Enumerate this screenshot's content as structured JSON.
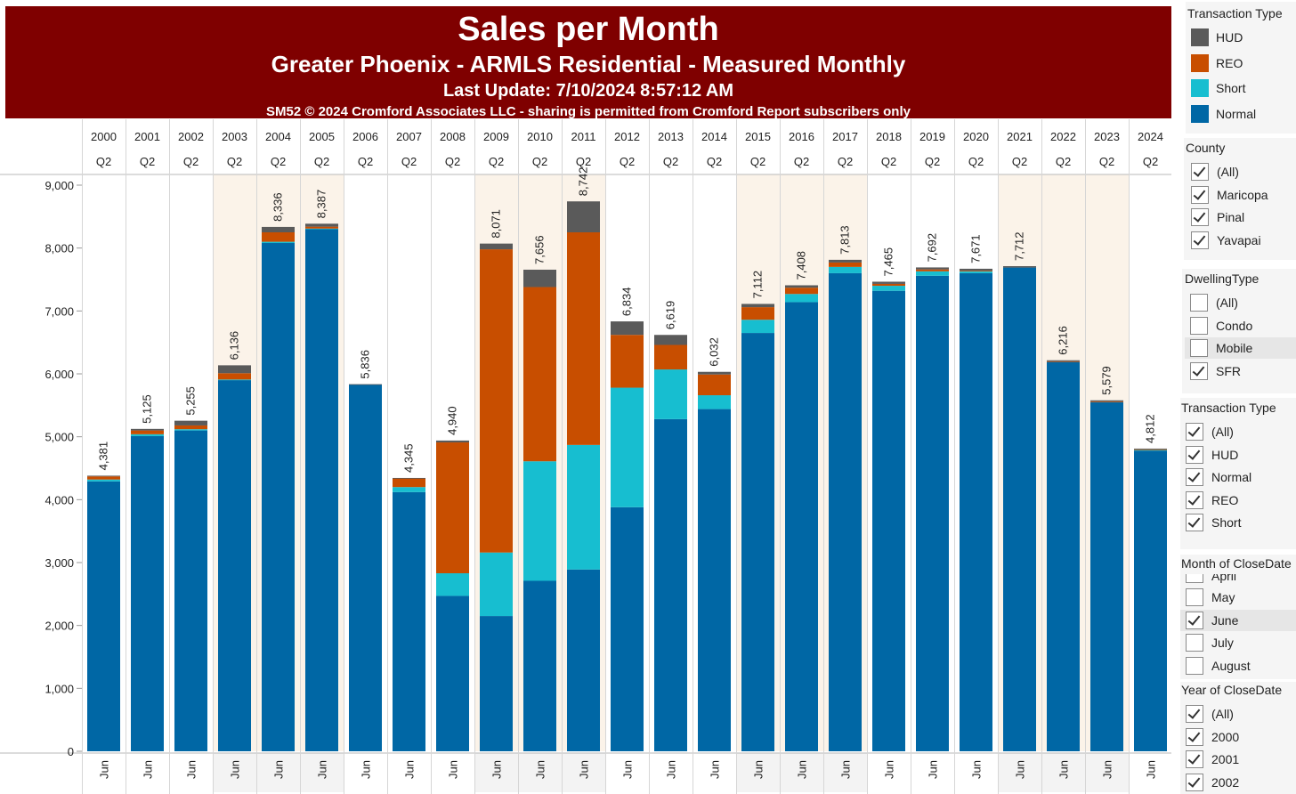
{
  "header": {
    "title": "Sales per Month",
    "subtitle": "Greater Phoenix - ARMLS Residential - Measured Monthly",
    "last_update": "Last Update: 7/10/2024 8:57:12 AM",
    "copyright": "SM52 © 2024 Cromford Associates LLC - sharing is permitted from Cromford Report subscribers only"
  },
  "colors": {
    "banner": "#7f0000",
    "HUD": "#5a5a5a",
    "REO": "#c84e00",
    "Short": "#17bed0",
    "Normal": "#0067a5",
    "band": "#fbf3e9"
  },
  "chart_data": {
    "type": "bar",
    "stacked": true,
    "categories": [
      "2000",
      "2001",
      "2002",
      "2003",
      "2004",
      "2005",
      "2006",
      "2007",
      "2008",
      "2009",
      "2010",
      "2011",
      "2012",
      "2013",
      "2014",
      "2015",
      "2016",
      "2017",
      "2018",
      "2019",
      "2020",
      "2021",
      "2022",
      "2023",
      "2024"
    ],
    "quarter_labels": [
      "Q2",
      "Q2",
      "Q2",
      "Q2",
      "Q2",
      "Q2",
      "Q2",
      "Q2",
      "Q2",
      "Q2",
      "Q2",
      "Q2",
      "Q2",
      "Q2",
      "Q2",
      "Q2",
      "Q2",
      "Q2",
      "Q2",
      "Q2",
      "Q2",
      "Q2",
      "Q2",
      "Q2",
      "Q2"
    ],
    "month_labels": [
      "Jun",
      "Jun",
      "Jun",
      "Jun",
      "Jun",
      "Jun",
      "Jun",
      "Jun",
      "Jun",
      "Jun",
      "Jun",
      "Jun",
      "Jun",
      "Jun",
      "Jun",
      "Jun",
      "Jun",
      "Jun",
      "Jun",
      "Jun",
      "Jun",
      "Jun",
      "Jun",
      "Jun",
      "Jun"
    ],
    "highlighted_years": [
      "2003",
      "2004",
      "2005",
      "2009",
      "2010",
      "2011",
      "2015",
      "2016",
      "2017",
      "2021",
      "2022",
      "2023"
    ],
    "series": [
      {
        "name": "Normal",
        "values": [
          4290,
          5010,
          5100,
          5900,
          8080,
          8300,
          5830,
          4120,
          2470,
          2150,
          2710,
          2890,
          3880,
          5280,
          5440,
          6650,
          7140,
          7600,
          7320,
          7560,
          7600,
          7690,
          6190,
          5550,
          4780
        ]
      },
      {
        "name": "Short",
        "values": [
          30,
          30,
          20,
          10,
          20,
          10,
          0,
          80,
          360,
          1010,
          1900,
          1980,
          1900,
          790,
          220,
          210,
          130,
          100,
          80,
          70,
          30,
          0,
          0,
          0,
          10
        ]
      },
      {
        "name": "REO",
        "values": [
          50,
          60,
          60,
          100,
          150,
          30,
          0,
          140,
          2080,
          4820,
          2770,
          3380,
          840,
          390,
          330,
          200,
          100,
          70,
          30,
          30,
          10,
          0,
          10,
          10,
          10
        ]
      },
      {
        "name": "HUD",
        "values": [
          11,
          25,
          75,
          126,
          86,
          47,
          6,
          5,
          30,
          91,
          276,
          492,
          214,
          159,
          42,
          52,
          38,
          43,
          35,
          32,
          31,
          22,
          16,
          19,
          12
        ]
      }
    ],
    "totals": [
      4381,
      5125,
      5255,
      6136,
      8336,
      8387,
      5836,
      4345,
      4940,
      8071,
      7656,
      8742,
      6834,
      6619,
      6032,
      7112,
      7408,
      7813,
      7465,
      7692,
      7671,
      7712,
      6216,
      5579,
      4812
    ],
    "total_labels": [
      "4,381",
      "5,125",
      "5,255",
      "6,136",
      "8,336",
      "8,387",
      "5,836",
      "4,345",
      "4,940",
      "8,071",
      "7,656",
      "8,742",
      "6,834",
      "6,619",
      "6,032",
      "7,112",
      "7,408",
      "7,813",
      "7,465",
      "7,692",
      "7,671",
      "7,712",
      "6,216",
      "5,579",
      "4,812"
    ],
    "ylim": [
      0,
      9000
    ],
    "yticks": [
      0,
      1000,
      2000,
      3000,
      4000,
      5000,
      6000,
      7000,
      8000,
      9000
    ],
    "ytick_labels": [
      "0",
      "1,000",
      "2,000",
      "3,000",
      "4,000",
      "5,000",
      "6,000",
      "7,000",
      "8,000",
      "9,000"
    ],
    "grid": false
  },
  "sidebar": {
    "legend": {
      "title": "Transaction Type",
      "items": [
        {
          "label": "HUD",
          "color": "#5a5a5a"
        },
        {
          "label": "REO",
          "color": "#c84e00"
        },
        {
          "label": "Short",
          "color": "#17bed0"
        },
        {
          "label": "Normal",
          "color": "#0067a5"
        }
      ]
    },
    "county": {
      "title": "County",
      "items": [
        {
          "label": "(All)",
          "checked": true
        },
        {
          "label": "Maricopa",
          "checked": true
        },
        {
          "label": "Pinal",
          "checked": true
        },
        {
          "label": "Yavapai",
          "checked": true
        }
      ]
    },
    "dwelling": {
      "title": "DwellingType",
      "items": [
        {
          "label": "(All)",
          "checked": false
        },
        {
          "label": "Condo",
          "checked": false
        },
        {
          "label": "Mobile",
          "checked": false,
          "highlight": true
        },
        {
          "label": "SFR",
          "checked": true
        }
      ]
    },
    "transaction": {
      "title": "Transaction Type",
      "items": [
        {
          "label": "(All)",
          "checked": true
        },
        {
          "label": "HUD",
          "checked": true
        },
        {
          "label": "Normal",
          "checked": true
        },
        {
          "label": "REO",
          "checked": true
        },
        {
          "label": "Short",
          "checked": true
        }
      ]
    },
    "month": {
      "title": "Month of CloseDate",
      "items": [
        {
          "label": "April",
          "checked": false,
          "partial": true
        },
        {
          "label": "May",
          "checked": false
        },
        {
          "label": "June",
          "checked": true,
          "highlight": true
        },
        {
          "label": "July",
          "checked": false
        },
        {
          "label": "August",
          "checked": false
        }
      ]
    },
    "year": {
      "title": "Year of CloseDate",
      "items": [
        {
          "label": "(All)",
          "checked": true
        },
        {
          "label": "2000",
          "checked": true
        },
        {
          "label": "2001",
          "checked": true
        },
        {
          "label": "2002",
          "checked": true
        }
      ]
    }
  }
}
